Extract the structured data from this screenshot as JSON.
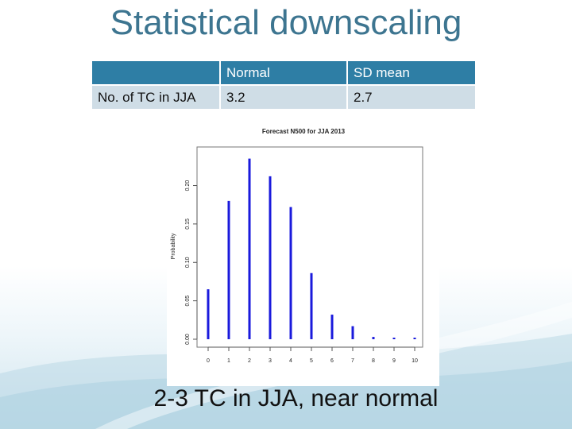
{
  "slide": {
    "title": "Statistical downscaling",
    "caption": "2-3 TC in JJA, near normal"
  },
  "table": {
    "headers": [
      "",
      "Normal",
      "SD mean"
    ],
    "rows": [
      [
        "No. of TC in JJA",
        "3.2",
        "2.7"
      ]
    ]
  },
  "chart_data": {
    "type": "bar",
    "title": "Forecast N500 for JJA 2013",
    "xlabel": "",
    "ylabel": "Probability",
    "categories": [
      "0",
      "1",
      "2",
      "3",
      "4",
      "5",
      "6",
      "7",
      "8",
      "9",
      "10"
    ],
    "values": [
      0.065,
      0.18,
      0.235,
      0.212,
      0.172,
      0.086,
      0.032,
      0.017,
      0.003,
      0.002,
      0.001
    ],
    "ylim": [
      0,
      0.245
    ],
    "yticks": [
      "0.00",
      "0.05",
      "0.10",
      "0.15",
      "0.20"
    ],
    "grid": false,
    "bar_color": "#1a1adc"
  }
}
